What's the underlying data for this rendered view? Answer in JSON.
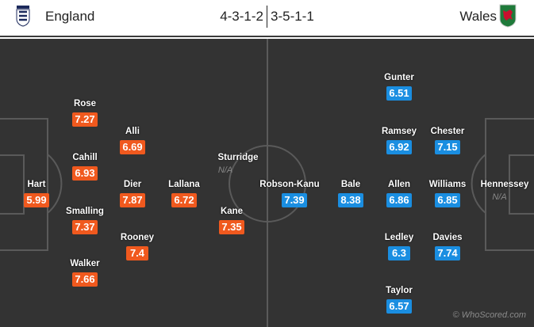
{
  "header": {
    "home_team": "England",
    "away_team": "Wales",
    "home_formation": "4-3-1-2",
    "away_formation": "3-5-1-1",
    "home_crest": "england-crest",
    "away_crest": "wales-crest"
  },
  "colors": {
    "home_rating": "#f0591e",
    "away_rating": "#1a8ee1",
    "pitch": "#333333"
  },
  "home_players": [
    {
      "name": "Hart",
      "rating": "5.99"
    },
    {
      "name": "Rose",
      "rating": "7.27"
    },
    {
      "name": "Cahill",
      "rating": "6.93"
    },
    {
      "name": "Smalling",
      "rating": "7.37"
    },
    {
      "name": "Walker",
      "rating": "7.66"
    },
    {
      "name": "Alli",
      "rating": "6.69"
    },
    {
      "name": "Dier",
      "rating": "7.87"
    },
    {
      "name": "Rooney",
      "rating": "7.4"
    },
    {
      "name": "Lallana",
      "rating": "6.72"
    },
    {
      "name": "Sturridge",
      "rating": "N/A"
    },
    {
      "name": "Kane",
      "rating": "7.35"
    }
  ],
  "away_players": [
    {
      "name": "Robson-Kanu",
      "rating": "7.39"
    },
    {
      "name": "Bale",
      "rating": "8.38"
    },
    {
      "name": "Gunter",
      "rating": "6.51"
    },
    {
      "name": "Ramsey",
      "rating": "6.92"
    },
    {
      "name": "Allen",
      "rating": "6.86"
    },
    {
      "name": "Ledley",
      "rating": "6.3"
    },
    {
      "name": "Taylor",
      "rating": "6.57"
    },
    {
      "name": "Chester",
      "rating": "7.15"
    },
    {
      "name": "Williams",
      "rating": "6.85"
    },
    {
      "name": "Davies",
      "rating": "7.74"
    },
    {
      "name": "Hennessey",
      "rating": "N/A"
    }
  ],
  "credit": "© WhoScored.com"
}
